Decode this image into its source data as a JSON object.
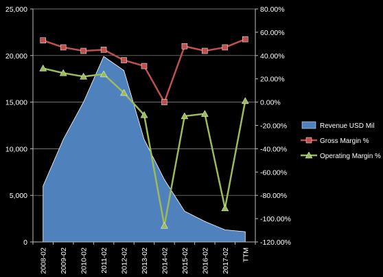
{
  "chart_data": {
    "type": "area",
    "categories": [
      "2008-02",
      "2009-02",
      "2010-02",
      "2011-02",
      "2012-02",
      "2013-02",
      "2014-02",
      "2015-02",
      "2016-02",
      "2017-02",
      "TTM"
    ],
    "series": [
      {
        "name": "Revenue USD Mil",
        "type": "area",
        "axis": "left",
        "color": "#4F81BD",
        "values": [
          6000,
          11000,
          15000,
          19900,
          18400,
          11000,
          6700,
          3300,
          2200,
          1300,
          1100
        ]
      },
      {
        "name": "Gross Margin %",
        "type": "line",
        "axis": "right",
        "color": "#C0504D",
        "marker": "square",
        "values": [
          53,
          47,
          44,
          45,
          36,
          31,
          0,
          48,
          44,
          47,
          54
        ]
      },
      {
        "name": "Operating Margin %",
        "type": "line",
        "axis": "right",
        "color": "#9BBB59",
        "marker": "triangle",
        "values": [
          29,
          25,
          22,
          24,
          8,
          -11,
          -106,
          -12,
          -10,
          -91,
          1
        ]
      }
    ],
    "y_left": {
      "min": 0,
      "max": 25000,
      "ticks": [
        0,
        5000,
        10000,
        15000,
        20000,
        25000
      ],
      "tick_labels": [
        "0",
        "5,000",
        "10,000",
        "15,000",
        "20,000",
        "25,000"
      ]
    },
    "y_right": {
      "min": -120,
      "max": 80,
      "ticks": [
        -120,
        -100,
        -80,
        -60,
        -40,
        -20,
        0,
        20,
        40,
        60,
        80
      ],
      "tick_labels": [
        "-120.00%",
        "-100.00%",
        "-80.00%",
        "-60.00%",
        "-40.00%",
        "-20.00%",
        "0.00%",
        "20.00%",
        "40.00%",
        "60.00%",
        "80.00%"
      ]
    },
    "grid": true,
    "legend_position": "right",
    "background": "#000000"
  }
}
